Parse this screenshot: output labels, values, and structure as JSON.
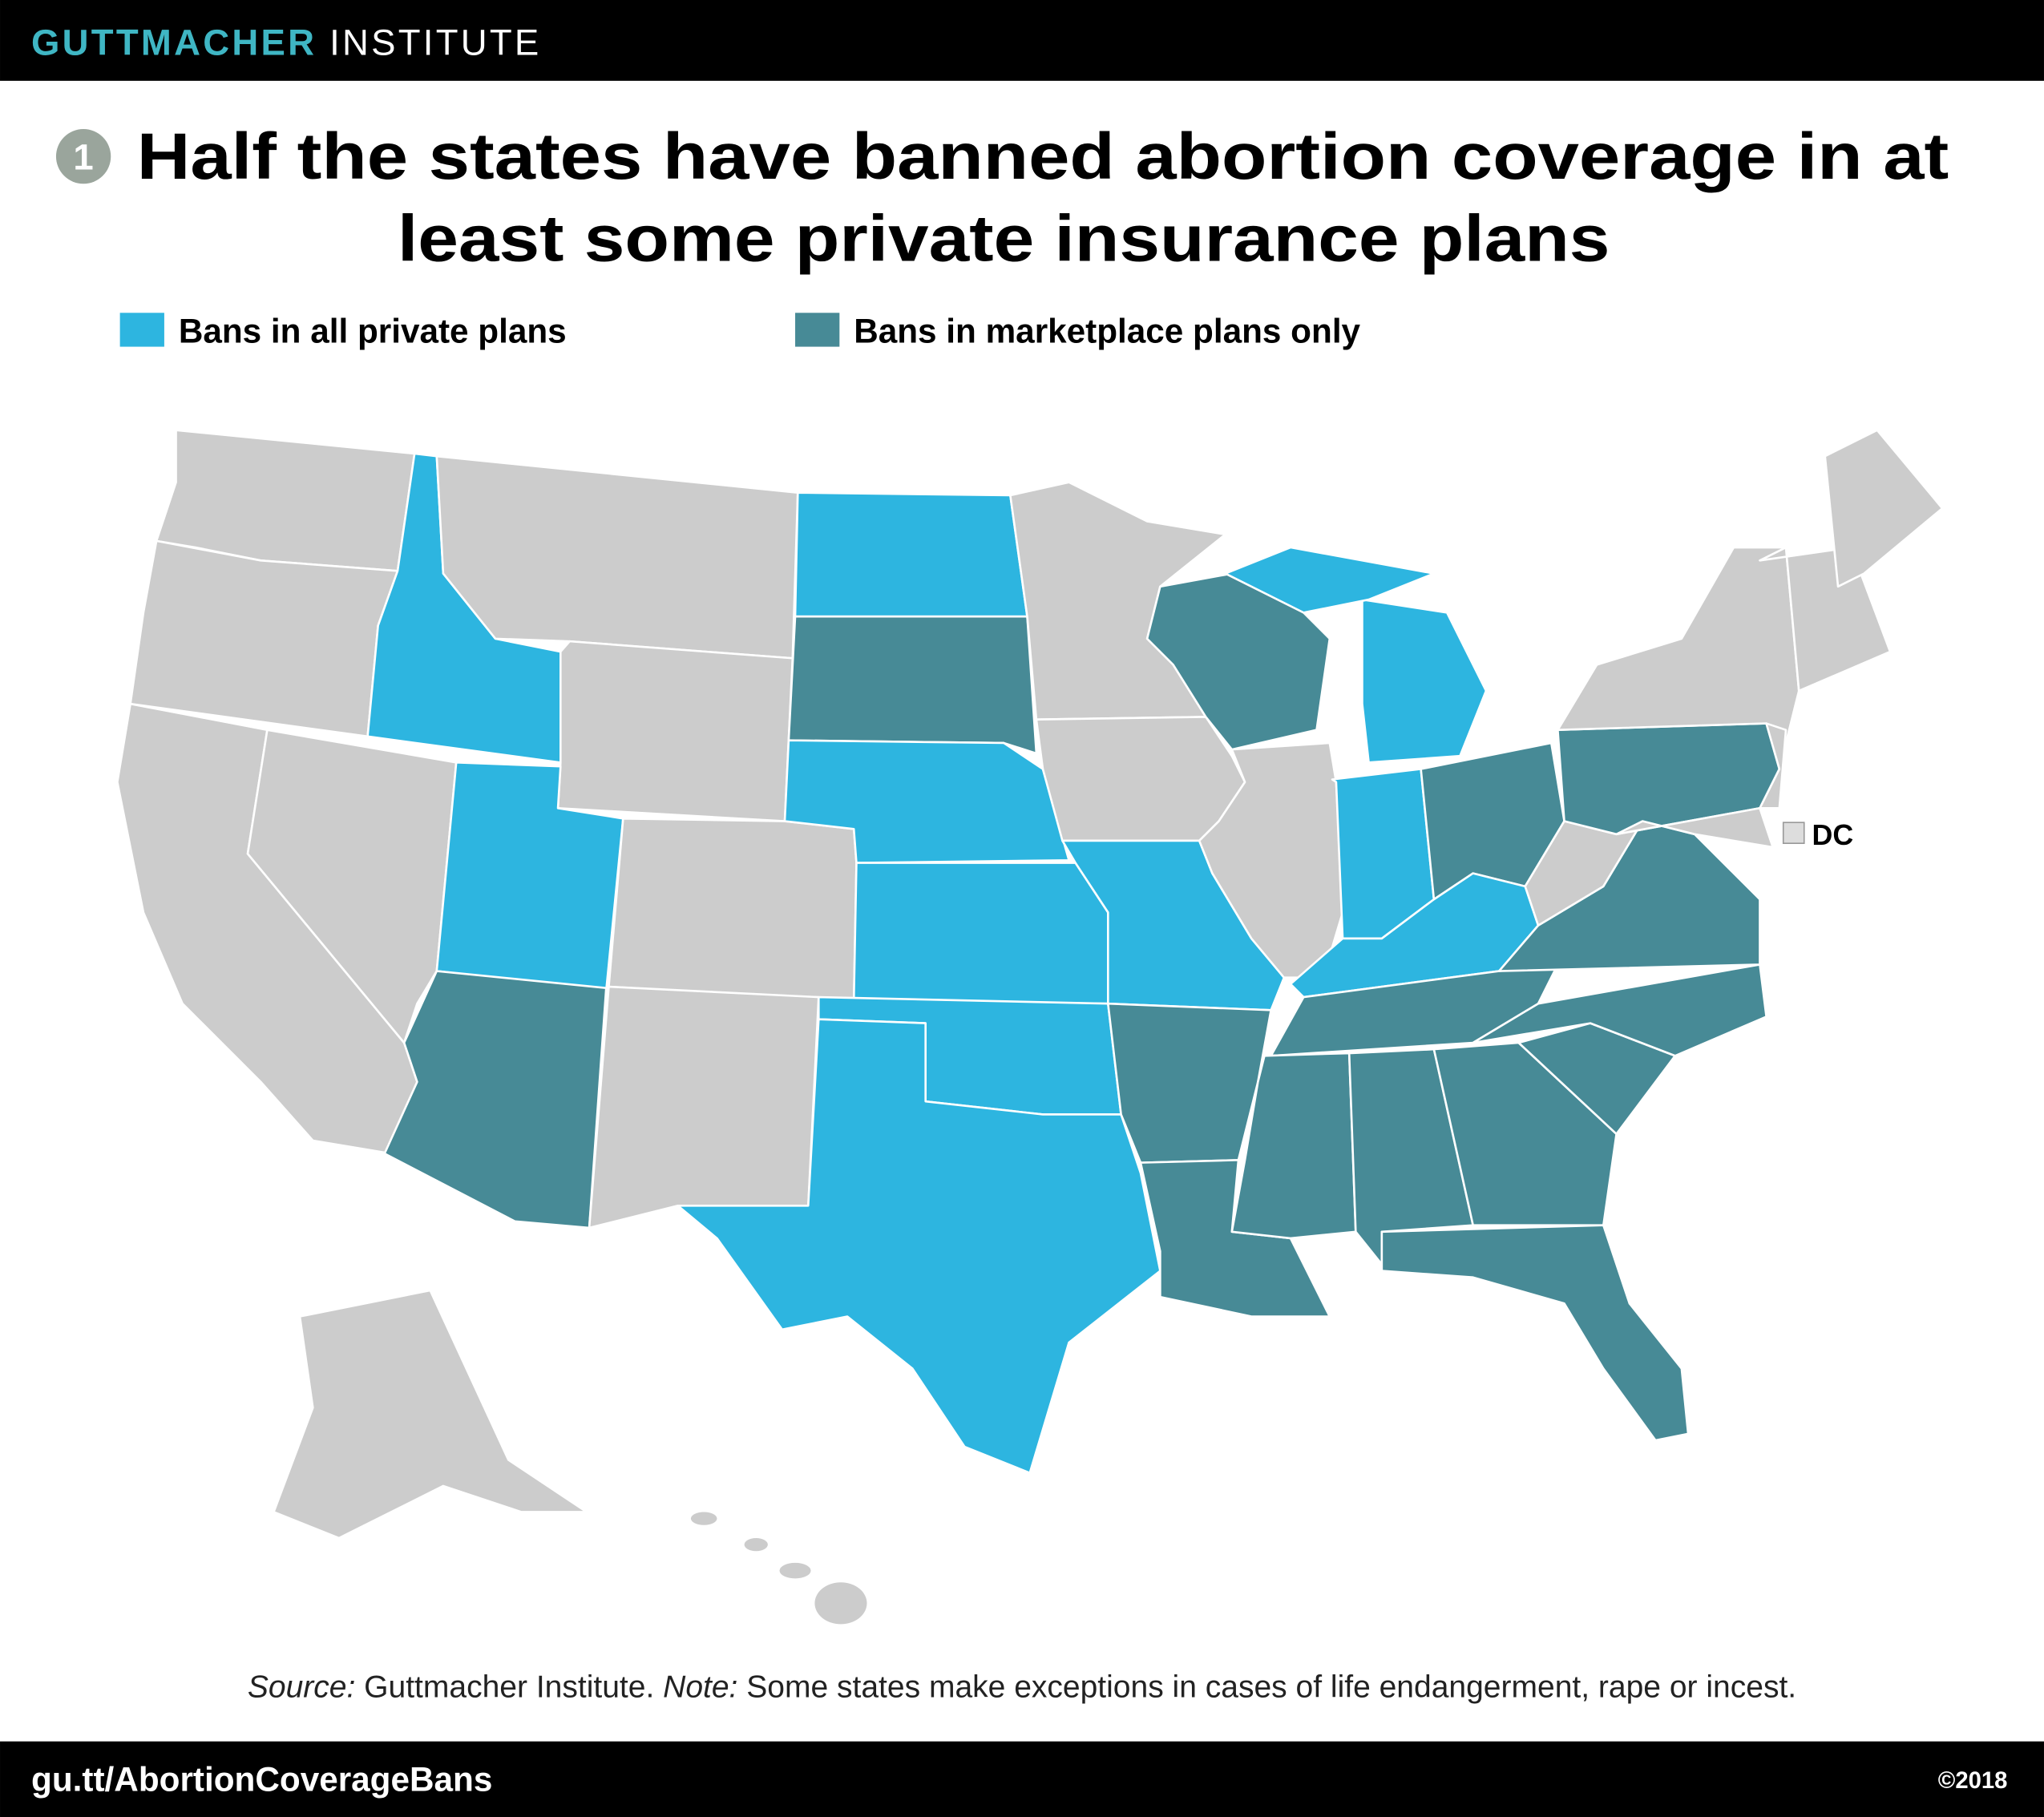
{
  "header": {
    "brand": "GUTTMACHER",
    "brand2": "INSTITUTE"
  },
  "title": {
    "number": "1",
    "line1": "Half the states have banned abortion coverage in at",
    "line2": "least some private insurance plans"
  },
  "legend": [
    {
      "label": "Bans in all private plans",
      "color": "#2db5e0"
    },
    {
      "label": "Bans in marketplace plans only",
      "color": "#478a96"
    }
  ],
  "map": {
    "dc_label": "DC"
  },
  "note": {
    "source_label": "Source:",
    "source_text": "Guttmacher Institute.",
    "note_label": "Note:",
    "note_text": "Some states make exceptions in cases of life endangerment, rape or incest."
  },
  "footer": {
    "url": "gu.tt/AbortionCoverageBans",
    "copyright": "©2018"
  }
}
